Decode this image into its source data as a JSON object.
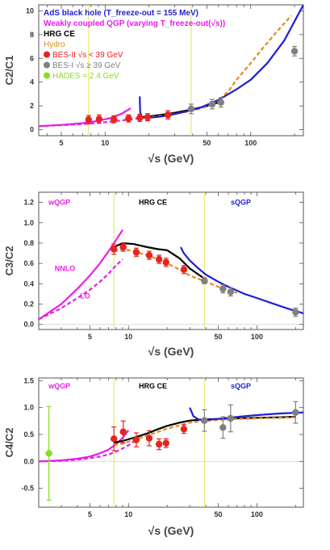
{
  "chart_data": [
    {
      "type": "line",
      "xscale": "log",
      "xlim": [
        3.5,
        230
      ],
      "ylim": [
        -0.5,
        10.5
      ],
      "xlabel": "√s (GeV)",
      "ylabel": "C2/C1",
      "xticks": [
        5,
        10,
        50,
        100
      ],
      "xtick_labels": [
        "5",
        "10",
        "50",
        "100"
      ],
      "yticks": [
        0,
        2,
        4,
        6,
        8,
        10
      ],
      "ytick_labels": [
        "0",
        "2",
        "4",
        "6",
        "8",
        "10"
      ],
      "vlines": [
        7.7,
        39
      ],
      "legend": {
        "placement": "top-left",
        "entries": [
          {
            "label": "AdS black hole (T_freeze-out = 155 MeV)",
            "color": "#1f1fd6"
          },
          {
            "label": "Weakly coupled QGP (varying T_freeze-out(√s))",
            "color": "#e81ee8"
          },
          {
            "label": "HRG CE",
            "color": "#000000"
          },
          {
            "label": "Hydro",
            "color": "#e58a1f"
          },
          {
            "label": "BES-II √s < 39 GeV",
            "color": "#e8231d"
          },
          {
            "label": "BES-I √s ≥ 39 GeV",
            "color": "#808080"
          },
          {
            "label": "HADES = 2.4 GeV",
            "color": "#88dd22"
          }
        ]
      },
      "series": [
        {
          "name": "Weakly coupled QGP",
          "color": "#e81ee8",
          "style": "solid",
          "x": [
            3.5,
            5,
            7,
            9,
            11,
            13,
            15
          ],
          "y": [
            0.3,
            0.4,
            0.55,
            0.75,
            1.0,
            1.35,
            1.8
          ]
        },
        {
          "name": "Weakly coupled QGP",
          "color": "#e81ee8",
          "style": "dashed",
          "x": [
            3.5,
            5,
            7,
            9,
            11,
            13,
            15,
            17,
            19
          ],
          "y": [
            0.3,
            0.38,
            0.48,
            0.58,
            0.68,
            0.78,
            0.88,
            0.98,
            1.05
          ]
        },
        {
          "name": "HRG CE",
          "color": "#000000",
          "style": "solid",
          "x": [
            17,
            20,
            25,
            30,
            40,
            50,
            60
          ],
          "y": [
            1.05,
            1.12,
            1.28,
            1.42,
            1.72,
            2.0,
            2.3
          ]
        },
        {
          "name": "Hydro",
          "color": "#e58a1f",
          "style": "dashed",
          "x": [
            17,
            20,
            25,
            30,
            40,
            50,
            60,
            70,
            80,
            100,
            120,
            150,
            190
          ],
          "y": [
            0.95,
            1.05,
            1.2,
            1.35,
            1.6,
            1.95,
            2.5,
            3.2,
            4.2,
            5.6,
            6.8,
            8.2,
            9.6
          ]
        },
        {
          "name": "AdS black hole",
          "color": "#1f1fd6",
          "style": "solid",
          "x": [
            17.3,
            17.4,
            17.8,
            19,
            22,
            27,
            35,
            45,
            60,
            80,
            100,
            130,
            170,
            230
          ],
          "y": [
            2.8,
            1.5,
            1.1,
            1.0,
            1.05,
            1.2,
            1.5,
            1.85,
            2.5,
            3.4,
            4.2,
            5.6,
            7.5,
            10.5
          ]
        }
      ],
      "points": [
        {
          "x": 7.7,
          "y": 0.85,
          "err": 0.35,
          "color": "#e8231d"
        },
        {
          "x": 9.1,
          "y": 0.9,
          "err": 0.35,
          "color": "#e8231d"
        },
        {
          "x": 11.5,
          "y": 0.88,
          "err": 0.3,
          "color": "#e8231d"
        },
        {
          "x": 14.5,
          "y": 0.95,
          "err": 0.3,
          "color": "#e8231d"
        },
        {
          "x": 17.3,
          "y": 1.0,
          "err": 0.3,
          "color": "#e8231d"
        },
        {
          "x": 19.6,
          "y": 1.05,
          "err": 0.3,
          "color": "#e8231d"
        },
        {
          "x": 27,
          "y": 1.25,
          "err": 0.35,
          "color": "#e8231d"
        },
        {
          "x": 39,
          "y": 1.75,
          "err": 0.4,
          "color": "#808080"
        },
        {
          "x": 54.4,
          "y": 2.15,
          "err": 0.4,
          "color": "#808080"
        },
        {
          "x": 62.4,
          "y": 2.3,
          "err": 0.4,
          "color": "#808080"
        },
        {
          "x": 200,
          "y": 6.6,
          "err": 0.4,
          "color": "#808080"
        }
      ]
    },
    {
      "type": "line",
      "xscale": "log",
      "xlim": [
        2.0,
        230
      ],
      "ylim": [
        -0.05,
        1.3
      ],
      "xlabel": "√s (GeV)",
      "ylabel": "C3/C2",
      "xticks": [
        5,
        10,
        50,
        100
      ],
      "xtick_labels": [
        "5",
        "10",
        "50",
        "100"
      ],
      "yticks": [
        0.0,
        0.2,
        0.4,
        0.6,
        0.8,
        1.0,
        1.2
      ],
      "ytick_labels": [
        "0.0",
        "0.2",
        "0.4",
        "0.6",
        "0.8",
        "1.0",
        "1.2"
      ],
      "vlines": [
        7.7,
        39
      ],
      "annotations": [
        {
          "text": "wQGP",
          "x": 2.9,
          "y": 1.2,
          "color": "#e81ee8"
        },
        {
          "text": "HRG CE",
          "x": 15.5,
          "y": 1.2,
          "color": "#000000"
        },
        {
          "text": "sQGP",
          "x": 75,
          "y": 1.2,
          "color": "#1f1fd6"
        },
        {
          "text": "NNLO",
          "x": 3.2,
          "y": 0.55,
          "color": "#e81ee8"
        },
        {
          "text": "LO",
          "x": 4.6,
          "y": 0.28,
          "color": "#e81ee8"
        }
      ],
      "series": [
        {
          "name": "NNLO",
          "color": "#e81ee8",
          "style": "solid",
          "x": [
            2.0,
            3,
            4,
            5,
            6,
            7,
            8,
            9
          ],
          "y": [
            0.05,
            0.2,
            0.35,
            0.48,
            0.6,
            0.72,
            0.83,
            0.93
          ]
        },
        {
          "name": "LO",
          "color": "#e81ee8",
          "style": "dashed",
          "x": [
            2.0,
            3,
            4,
            5,
            6,
            7,
            8,
            9
          ],
          "y": [
            0.05,
            0.16,
            0.26,
            0.34,
            0.42,
            0.5,
            0.58,
            0.64
          ]
        },
        {
          "name": "HRG CE",
          "color": "#000000",
          "style": "solid",
          "x": [
            7.7,
            9,
            11,
            14,
            17,
            20,
            25,
            30,
            39
          ],
          "y": [
            0.76,
            0.8,
            0.79,
            0.76,
            0.74,
            0.73,
            0.65,
            0.55,
            0.45
          ]
        },
        {
          "name": "Hydro",
          "color": "#e58a1f",
          "style": "dashed",
          "x": [
            7.7,
            9,
            11,
            14,
            17,
            20,
            25,
            30,
            40,
            50,
            60,
            70
          ],
          "y": [
            0.72,
            0.74,
            0.72,
            0.68,
            0.64,
            0.6,
            0.54,
            0.48,
            0.42,
            0.37,
            0.34,
            0.31
          ]
        },
        {
          "name": "sQGP",
          "color": "#1f1fd6",
          "style": "solid",
          "x": [
            25.5,
            27,
            30,
            35,
            40,
            50,
            60,
            80,
            100,
            130,
            170,
            230
          ],
          "y": [
            0.76,
            0.7,
            0.63,
            0.55,
            0.49,
            0.42,
            0.37,
            0.3,
            0.26,
            0.21,
            0.16,
            0.11
          ]
        }
      ],
      "points": [
        {
          "x": 7.7,
          "y": 0.74,
          "err": 0.05,
          "color": "#e8231d"
        },
        {
          "x": 9.1,
          "y": 0.76,
          "err": 0.04,
          "color": "#e8231d"
        },
        {
          "x": 11.5,
          "y": 0.71,
          "err": 0.04,
          "color": "#e8231d"
        },
        {
          "x": 14.5,
          "y": 0.68,
          "err": 0.04,
          "color": "#e8231d"
        },
        {
          "x": 17.3,
          "y": 0.64,
          "err": 0.04,
          "color": "#e8231d"
        },
        {
          "x": 19.6,
          "y": 0.61,
          "err": 0.04,
          "color": "#e8231d"
        },
        {
          "x": 27,
          "y": 0.54,
          "err": 0.04,
          "color": "#e8231d"
        },
        {
          "x": 39,
          "y": 0.43,
          "err": 0.03,
          "color": "#808080"
        },
        {
          "x": 54.4,
          "y": 0.35,
          "err": 0.04,
          "color": "#808080"
        },
        {
          "x": 62.4,
          "y": 0.32,
          "err": 0.04,
          "color": "#808080"
        },
        {
          "x": 200,
          "y": 0.12,
          "err": 0.04,
          "color": "#808080"
        }
      ]
    },
    {
      "type": "line",
      "xscale": "log",
      "xlim": [
        2.0,
        230
      ],
      "ylim": [
        -0.85,
        1.55
      ],
      "xlabel": "√s (GeV)",
      "ylabel": "C4/C2",
      "xticks": [
        5,
        10,
        50,
        100
      ],
      "xtick_labels": [
        "5",
        "10",
        "50",
        "100"
      ],
      "yticks": [
        -0.5,
        0.0,
        0.5,
        1.0,
        1.5
      ],
      "ytick_labels": [
        "-0.5",
        "0.0",
        "0.5",
        "1.0",
        "1.5"
      ],
      "vlines": [
        7.7,
        39
      ],
      "annotations": [
        {
          "text": "wQGP",
          "x": 2.9,
          "y": 1.4,
          "color": "#e81ee8"
        },
        {
          "text": "HRG CE",
          "x": 15.5,
          "y": 1.4,
          "color": "#000000"
        },
        {
          "text": "sQGP",
          "x": 75,
          "y": 1.4,
          "color": "#1f1fd6"
        }
      ],
      "series": [
        {
          "name": "wQGP solid",
          "color": "#e81ee8",
          "style": "solid",
          "x": [
            2.0,
            3,
            4,
            5,
            6,
            7,
            8,
            9,
            10
          ],
          "y": [
            0.0,
            0.02,
            0.05,
            0.09,
            0.15,
            0.22,
            0.32,
            0.44,
            0.58
          ]
        },
        {
          "name": "wQGP dashed",
          "color": "#e81ee8",
          "style": "dashed",
          "x": [
            2.0,
            3,
            4,
            5,
            6,
            7,
            8,
            9,
            10,
            11,
            12
          ],
          "y": [
            0.0,
            0.01,
            0.03,
            0.06,
            0.09,
            0.13,
            0.18,
            0.24,
            0.3,
            0.37,
            0.44
          ]
        },
        {
          "name": "HRG CE",
          "color": "#000000",
          "style": "solid",
          "x": [
            7.7,
            9,
            11,
            14,
            17,
            20,
            25,
            30,
            39,
            50,
            70,
            100,
            150,
            200
          ],
          "y": [
            0.35,
            0.38,
            0.44,
            0.52,
            0.6,
            0.66,
            0.72,
            0.76,
            0.78,
            0.79,
            0.8,
            0.81,
            0.82,
            0.83
          ]
        },
        {
          "name": "Hydro",
          "color": "#e58a1f",
          "style": "dashed",
          "x": [
            7.7,
            9,
            11,
            14,
            17,
            20,
            25,
            30,
            39,
            50,
            70,
            100,
            150,
            200
          ],
          "y": [
            0.3,
            0.33,
            0.4,
            0.48,
            0.55,
            0.61,
            0.67,
            0.72,
            0.75,
            0.77,
            0.79,
            0.8,
            0.81,
            0.82
          ]
        },
        {
          "name": "sQGP",
          "color": "#1f1fd6",
          "style": "solid",
          "x": [
            30,
            32,
            35,
            40,
            50,
            60,
            80,
            100,
            150,
            230
          ],
          "y": [
            1.0,
            0.84,
            0.78,
            0.77,
            0.79,
            0.81,
            0.84,
            0.86,
            0.89,
            0.91
          ]
        }
      ],
      "points": [
        {
          "x": 2.4,
          "y": 0.15,
          "err": 0.87,
          "color": "#88dd22"
        },
        {
          "x": 7.7,
          "y": 0.42,
          "err": 0.22,
          "color": "#e8231d"
        },
        {
          "x": 9.1,
          "y": 0.55,
          "err": 0.2,
          "color": "#e8231d"
        },
        {
          "x": 11.5,
          "y": 0.4,
          "err": 0.13,
          "color": "#e8231d"
        },
        {
          "x": 14.5,
          "y": 0.43,
          "err": 0.14,
          "color": "#e8231d"
        },
        {
          "x": 17.3,
          "y": 0.32,
          "err": 0.1,
          "color": "#e8231d"
        },
        {
          "x": 19.6,
          "y": 0.34,
          "err": 0.08,
          "color": "#e8231d"
        },
        {
          "x": 27,
          "y": 0.6,
          "err": 0.08,
          "color": "#e8231d"
        },
        {
          "x": 39,
          "y": 0.76,
          "err": 0.2,
          "color": "#808080"
        },
        {
          "x": 54.4,
          "y": 0.63,
          "err": 0.2,
          "color": "#808080"
        },
        {
          "x": 62.4,
          "y": 0.8,
          "err": 0.25,
          "color": "#808080"
        },
        {
          "x": 200,
          "y": 0.91,
          "err": 0.2,
          "color": "#808080"
        }
      ]
    }
  ]
}
